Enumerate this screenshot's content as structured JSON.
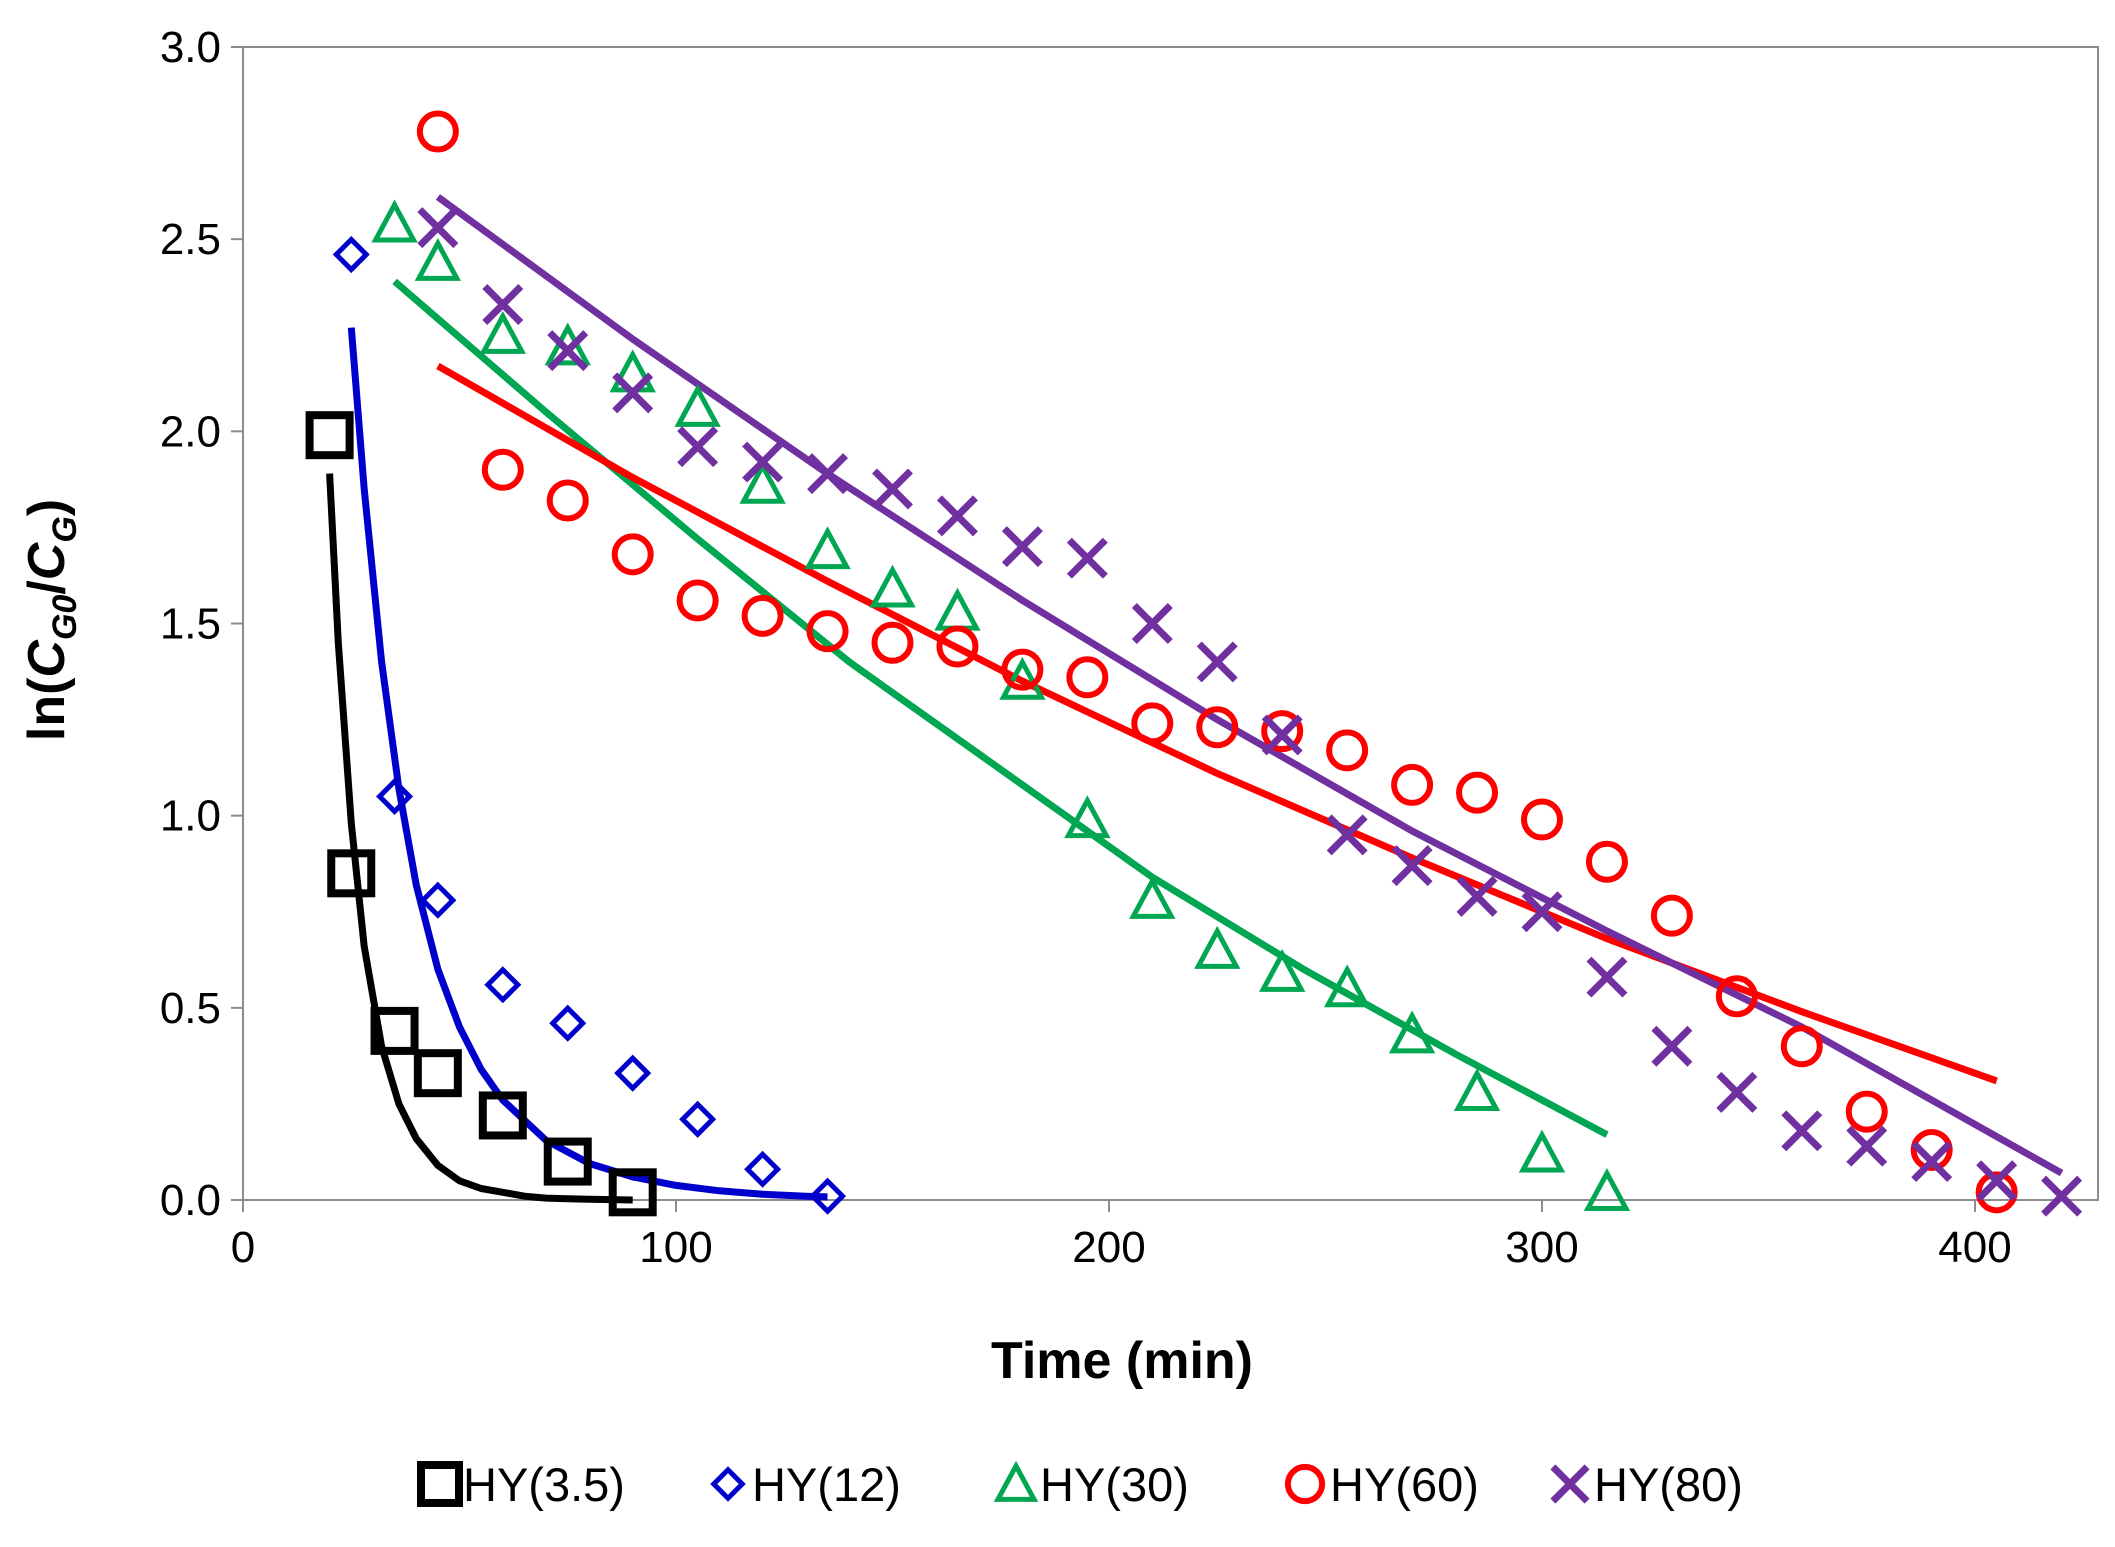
{
  "chart_data": {
    "type": "scatter",
    "xlabel": "Time (min)",
    "ylabel": {
      "prefix": "ln(",
      "c1": "C",
      "s1": "G0",
      "slash": "/",
      "c2": "C",
      "s2": "G",
      "suffix": ")"
    },
    "xlim": [
      0,
      430
    ],
    "ylim": [
      0,
      3.0
    ],
    "x_ticks": [
      "0",
      "100",
      "200",
      "300",
      "400"
    ],
    "y_ticks": [
      "0.0",
      "0.5",
      "1.0",
      "1.5",
      "2.0",
      "2.5",
      "3.0"
    ],
    "legend_position": "bottom",
    "series": [
      {
        "name": "HY(3.5)",
        "color": "#000000",
        "marker": "square",
        "x": [
          20,
          25,
          35,
          45,
          60,
          75,
          90
        ],
        "y": [
          1.99,
          0.85,
          0.44,
          0.33,
          0.22,
          0.1,
          0.02
        ],
        "fit": {
          "x": [
            20,
            22,
            25,
            28,
            32,
            36,
            40,
            45,
            50,
            55,
            60,
            65,
            70,
            75,
            80,
            85,
            90
          ],
          "y": [
            1.89,
            1.45,
            0.98,
            0.66,
            0.4,
            0.25,
            0.16,
            0.09,
            0.05,
            0.03,
            0.02,
            0.01,
            0.005,
            0.003,
            0.002,
            0.001,
            0.0
          ]
        }
      },
      {
        "name": "HY(12)",
        "color": "#0000cc",
        "marker": "diamond",
        "x": [
          25,
          35,
          45,
          60,
          75,
          90,
          105,
          120,
          135
        ],
        "y": [
          2.46,
          1.05,
          0.78,
          0.56,
          0.46,
          0.33,
          0.21,
          0.08,
          0.01
        ],
        "fit": {
          "x": [
            25,
            28,
            32,
            36,
            40,
            45,
            50,
            55,
            60,
            70,
            80,
            90,
            100,
            110,
            120,
            130,
            135
          ],
          "y": [
            2.27,
            1.85,
            1.4,
            1.07,
            0.82,
            0.6,
            0.45,
            0.34,
            0.26,
            0.155,
            0.095,
            0.06,
            0.038,
            0.024,
            0.015,
            0.01,
            0.008
          ]
        }
      },
      {
        "name": "HY(30)",
        "color": "#00a651",
        "marker": "triangle",
        "x": [
          35,
          45,
          60,
          75,
          90,
          105,
          120,
          135,
          150,
          165,
          180,
          195,
          210,
          225,
          240,
          255,
          270,
          285,
          300,
          315
        ],
        "y": [
          2.54,
          2.44,
          2.25,
          2.22,
          2.15,
          2.06,
          1.86,
          1.69,
          1.59,
          1.53,
          1.35,
          0.99,
          0.78,
          0.65,
          0.59,
          0.55,
          0.43,
          0.28,
          0.12,
          0.02
        ],
        "fit": {
          "x": [
            35,
            70,
            105,
            140,
            175,
            210,
            245,
            280,
            315
          ],
          "y": [
            2.39,
            2.05,
            1.72,
            1.4,
            1.12,
            0.84,
            0.6,
            0.38,
            0.17
          ]
        }
      },
      {
        "name": "HY(60)",
        "color": "#ff0000",
        "marker": "circle",
        "x": [
          45,
          60,
          75,
          90,
          105,
          120,
          135,
          150,
          165,
          180,
          195,
          210,
          225,
          240,
          255,
          270,
          285,
          300,
          315,
          330,
          345,
          360,
          375,
          390,
          405
        ],
        "y": [
          2.78,
          1.9,
          1.82,
          1.68,
          1.56,
          1.52,
          1.48,
          1.45,
          1.44,
          1.38,
          1.36,
          1.24,
          1.23,
          1.22,
          1.17,
          1.08,
          1.06,
          0.99,
          0.88,
          0.74,
          0.53,
          0.4,
          0.23,
          0.13,
          0.02
        ],
        "fit": {
          "x": [
            45,
            90,
            135,
            180,
            225,
            270,
            315,
            360,
            405
          ],
          "y": [
            2.17,
            1.88,
            1.61,
            1.35,
            1.11,
            0.89,
            0.68,
            0.49,
            0.31
          ]
        }
      },
      {
        "name": "HY(80)",
        "color": "#7030a0",
        "marker": "cross",
        "x": [
          45,
          60,
          75,
          90,
          105,
          120,
          135,
          150,
          165,
          180,
          195,
          210,
          225,
          240,
          255,
          270,
          285,
          300,
          315,
          330,
          345,
          360,
          375,
          390,
          405,
          420
        ],
        "y": [
          2.53,
          2.33,
          2.21,
          2.1,
          1.96,
          1.92,
          1.89,
          1.85,
          1.78,
          1.7,
          1.67,
          1.5,
          1.4,
          1.21,
          0.95,
          0.87,
          0.79,
          0.75,
          0.58,
          0.4,
          0.28,
          0.18,
          0.14,
          0.1,
          0.05,
          0.01
        ],
        "fit": {
          "x": [
            45,
            90,
            135,
            180,
            225,
            270,
            315,
            360,
            420
          ],
          "y": [
            2.61,
            2.24,
            1.89,
            1.56,
            1.25,
            0.96,
            0.7,
            0.45,
            0.07
          ]
        }
      }
    ]
  }
}
